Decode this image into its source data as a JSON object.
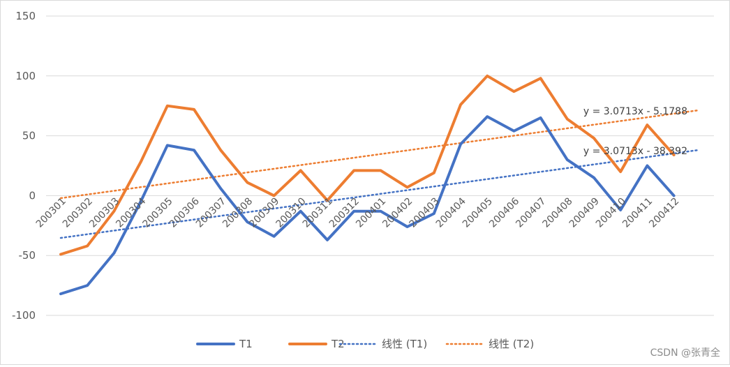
{
  "chart_data": {
    "type": "line",
    "title": "",
    "xlabel": "",
    "ylabel": "",
    "ylim": [
      -100,
      150
    ],
    "yticks": [
      150,
      100,
      50,
      0,
      -50,
      -100
    ],
    "grid": true,
    "legend_position": "bottom",
    "categories": [
      "200301",
      "200302",
      "200303",
      "200304",
      "200305",
      "200306",
      "200307",
      "200308",
      "200309",
      "200310",
      "200311",
      "200312",
      "200401",
      "200402",
      "200403",
      "200404",
      "200405",
      "200406",
      "200407",
      "200408",
      "200409",
      "200410",
      "200411",
      "200412"
    ],
    "series": [
      {
        "name": "T1",
        "color": "#4472C4",
        "values": [
          -82,
          -75,
          -48,
          -5,
          42,
          38,
          6,
          -22,
          -34,
          -13,
          -37,
          -13,
          -13,
          -26,
          -15,
          43,
          66,
          54,
          65,
          30,
          15,
          -12,
          25,
          0
        ]
      },
      {
        "name": "T2",
        "color": "#ED7D31",
        "values": [
          -49,
          -42,
          -13,
          28,
          75,
          72,
          38,
          11,
          0,
          21,
          -4,
          21,
          21,
          7,
          19,
          76,
          100,
          87,
          98,
          64,
          48,
          20,
          59,
          34
        ]
      }
    ],
    "trendlines": [
      {
        "name": "线性 (T1)",
        "color": "#4472C4",
        "slope": 3.0713,
        "intercept": -38.392,
        "equation": "y = 3.0713x - 38.392"
      },
      {
        "name": "线性 (T2)",
        "color": "#ED7D31",
        "slope": 3.0713,
        "intercept": -5.1788,
        "equation": "y = 3.0713x - 5.1788"
      }
    ]
  },
  "watermark": "CSDN @张青全"
}
